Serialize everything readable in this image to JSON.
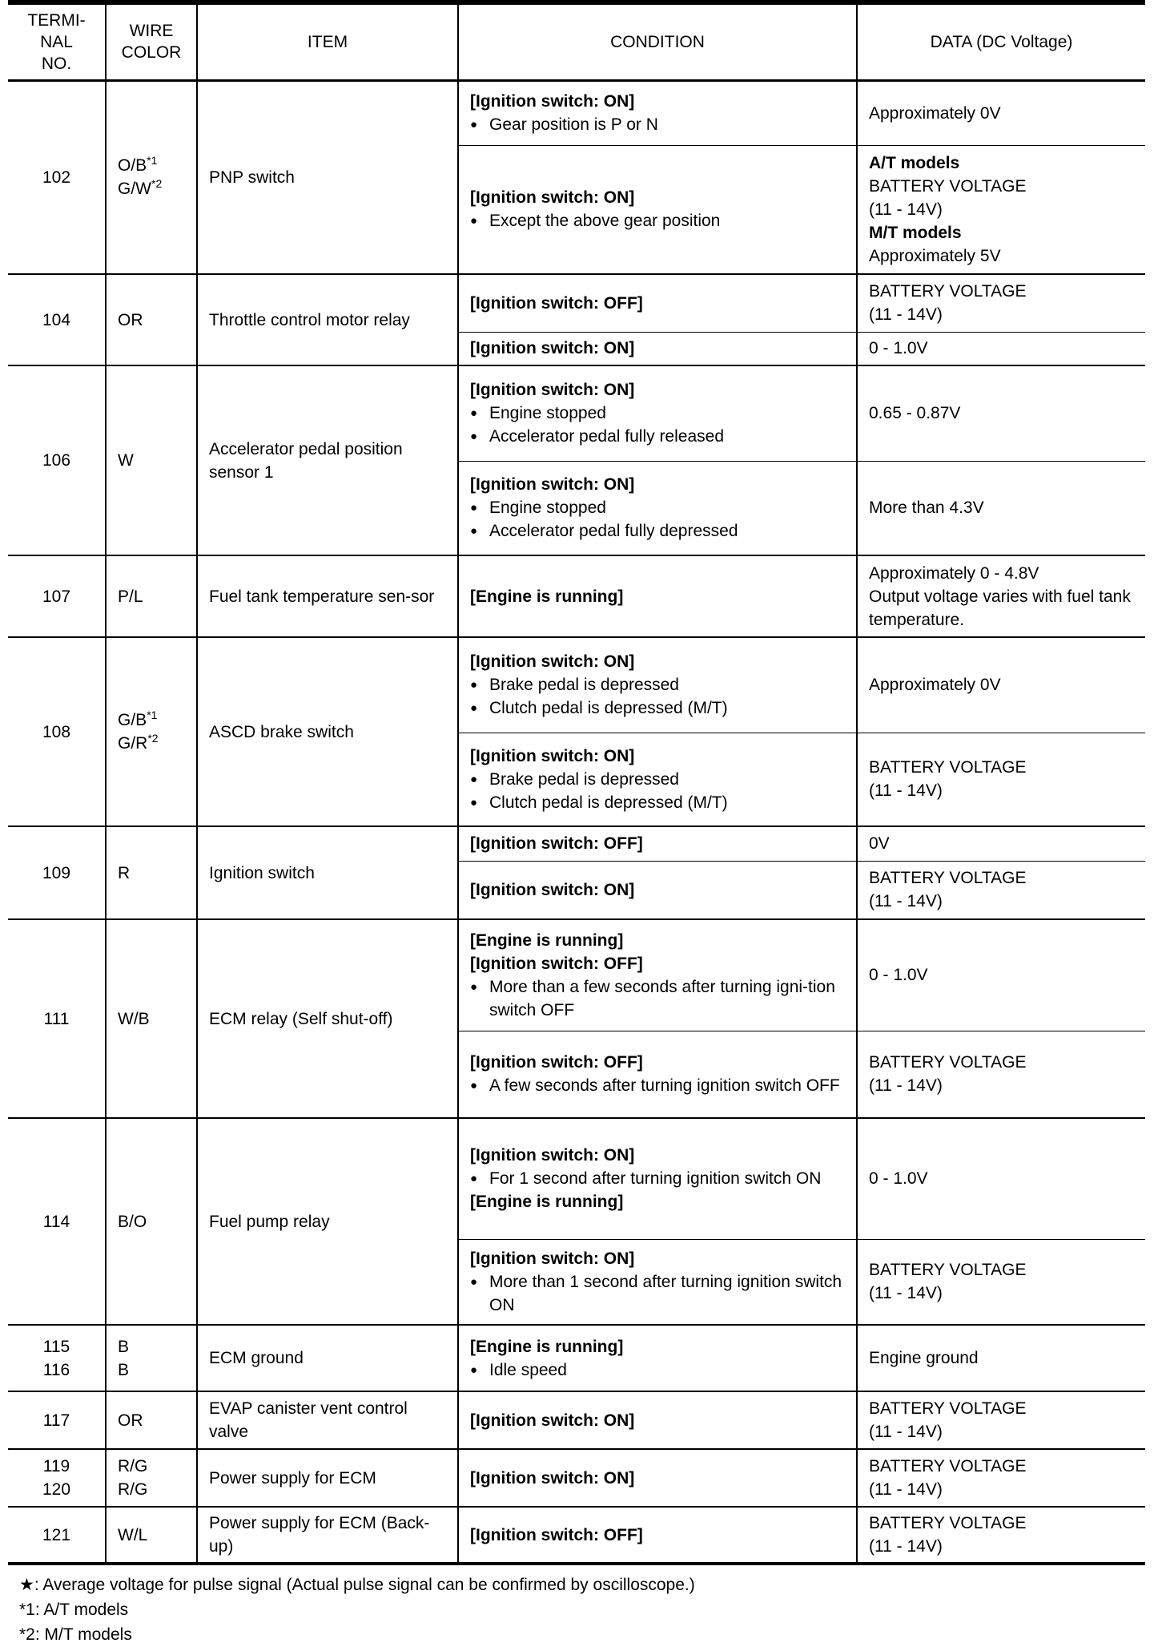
{
  "headers": {
    "terminal": "TERMI-\nNAL\nNO.",
    "wire": "WIRE\nCOLOR",
    "item": "ITEM",
    "condition": "CONDITION",
    "data": "DATA (DC Voltage)"
  },
  "rows": [
    {
      "terminal": [
        "102"
      ],
      "wire": [
        {
          "text": "O/B",
          "sup": "*1"
        },
        {
          "text": "G/W",
          "sup": "*2"
        }
      ],
      "item": "PNP switch",
      "subs": [
        {
          "h": 81,
          "cond": [
            {
              "t": "[Ignition switch: ON]",
              "b": true
            },
            {
              "t": "Gear position is P or N",
              "bul": true
            }
          ],
          "data": [
            {
              "t": "Approximately 0V"
            }
          ]
        },
        {
          "h": 161,
          "cond": [
            {
              "t": "[Ignition switch: ON]",
              "b": true
            },
            {
              "t": "Except the above gear position",
              "bul": true
            }
          ],
          "data": [
            {
              "t": "A/T models",
              "b": true
            },
            {
              "t": "BATTERY VOLTAGE"
            },
            {
              "t": "(11 - 14V)"
            },
            {
              "t": "M/T models",
              "b": true
            },
            {
              "t": "Approximately 5V"
            }
          ]
        }
      ]
    },
    {
      "terminal": [
        "104"
      ],
      "wire": [
        {
          "text": "OR"
        }
      ],
      "item": "Throttle control motor relay",
      "subs": [
        {
          "h": 72,
          "cond": [
            {
              "t": "[Ignition switch: OFF]",
              "b": true
            }
          ],
          "data": [
            {
              "t": "BATTERY VOLTAGE"
            },
            {
              "t": "(11 - 14V)"
            }
          ]
        },
        {
          "h": 42,
          "cond": [
            {
              "t": "[Ignition switch: ON]",
              "b": true
            }
          ],
          "data": [
            {
              "t": "0 - 1.0V"
            }
          ]
        }
      ]
    },
    {
      "terminal": [
        "106"
      ],
      "wire": [
        {
          "text": "W"
        }
      ],
      "item": "Accelerator pedal position sensor 1",
      "subs": [
        {
          "h": 119,
          "cond": [
            {
              "t": "[Ignition switch: ON]",
              "b": true
            },
            {
              "t": "Engine stopped",
              "bul": true
            },
            {
              "t": "Accelerator pedal fully released",
              "bul": true
            }
          ],
          "data": [
            {
              "t": "0.65 - 0.87V"
            }
          ]
        },
        {
          "h": 118,
          "cond": [
            {
              "t": "[Ignition switch: ON]",
              "b": true
            },
            {
              "t": "Engine stopped",
              "bul": true
            },
            {
              "t": "Accelerator pedal fully depressed",
              "bul": true
            }
          ],
          "data": [
            {
              "t": "More than 4.3V"
            }
          ]
        }
      ]
    },
    {
      "terminal": [
        "107"
      ],
      "wire": [
        {
          "text": "P/L"
        }
      ],
      "item": "Fuel tank temperature sen-sor",
      "subs": [
        {
          "h": 102,
          "cond": [
            {
              "t": "[Engine is running]",
              "b": true
            }
          ],
          "data": [
            {
              "t": "Approximately 0 - 4.8V"
            },
            {
              "t": " Output voltage varies with fuel tank temperature."
            }
          ]
        }
      ]
    },
    {
      "terminal": [
        "108"
      ],
      "wire": [
        {
          "text": "G/B",
          "sup": "*1"
        },
        {
          "text": "G/R",
          "sup": "*2"
        }
      ],
      "item": "ASCD brake switch",
      "subs": [
        {
          "h": 119,
          "cond": [
            {
              "t": "[Ignition switch: ON]",
              "b": true
            },
            {
              "t": "Brake pedal is depressed",
              "bul": true
            },
            {
              "t": "Clutch pedal is depressed (M/T)",
              "bul": true
            }
          ],
          "data": [
            {
              "t": " Approximately 0V"
            }
          ]
        },
        {
          "h": 117,
          "cond": [
            {
              "t": "[Ignition switch: ON]",
              "b": true
            },
            {
              "t": "Brake pedal is depressed",
              "bul": true
            },
            {
              "t": "Clutch pedal is depressed (M/T)",
              "bul": true
            }
          ],
          "data": [
            {
              "t": "BATTERY VOLTAGE"
            },
            {
              "t": "(11 - 14V)"
            }
          ]
        }
      ]
    },
    {
      "terminal": [
        "109"
      ],
      "wire": [
        {
          "text": "R"
        }
      ],
      "item": "Ignition switch",
      "subs": [
        {
          "h": 43,
          "cond": [
            {
              "t": "[Ignition switch: OFF]",
              "b": true
            }
          ],
          "data": [
            {
              "t": "0V"
            }
          ]
        },
        {
          "h": 73,
          "cond": [
            {
              "t": "[Ignition switch: ON]",
              "b": true
            }
          ],
          "data": [
            {
              "t": "BATTERY VOLTAGE"
            },
            {
              "t": "(11 - 14V)"
            }
          ]
        }
      ]
    },
    {
      "terminal": [
        "111"
      ],
      "wire": [
        {
          "text": "W/B"
        }
      ],
      "item": "ECM relay (Self shut-off)",
      "subs": [
        {
          "h": 139,
          "cond": [
            {
              "t": "[Engine is running]",
              "b": true
            },
            {
              "t": "[Ignition switch: OFF]",
              "b": true
            },
            {
              "t": "More than a few seconds after turning igni-tion switch OFF",
              "bul": true
            }
          ],
          "data": [
            {
              "t": "0 - 1.0V"
            }
          ]
        },
        {
          "h": 109,
          "cond": [
            {
              "t": "[Ignition switch: OFF]",
              "b": true
            },
            {
              "t": "A few seconds after turning ignition switch OFF",
              "bul": true
            }
          ],
          "data": [
            {
              "t": "BATTERY VOLTAGE"
            },
            {
              "t": "(11 - 14V)"
            }
          ]
        }
      ]
    },
    {
      "terminal": [
        "114"
      ],
      "wire": [
        {
          "text": "B/O"
        }
      ],
      "item": "Fuel pump relay",
      "subs": [
        {
          "h": 151,
          "cond": [
            {
              "t": "[Ignition switch: ON]",
              "b": true
            },
            {
              "t": "For 1 second after turning ignition switch ON",
              "bul": true
            },
            {
              "t": "[Engine is running]",
              "b": true
            }
          ],
          "data": [
            {
              "t": "0 - 1.0V"
            }
          ]
        },
        {
          "h": 107,
          "cond": [
            {
              "t": "[Ignition switch: ON]",
              "b": true
            },
            {
              "t": "More than 1 second after turning ignition switch ON",
              "bul": true
            }
          ],
          "data": [
            {
              "t": "BATTERY VOLTAGE"
            },
            {
              "t": "(11 - 14V)"
            }
          ]
        }
      ]
    },
    {
      "terminal": [
        "115",
        "116"
      ],
      "wire": [
        {
          "text": "B"
        },
        {
          "text": "B"
        }
      ],
      "item": "ECM ground",
      "subs": [
        {
          "h": 83,
          "cond": [
            {
              "t": "[Engine is running]",
              "b": true
            },
            {
              "t": "Idle speed",
              "bul": true
            }
          ],
          "data": [
            {
              "t": "Engine ground"
            }
          ]
        }
      ]
    },
    {
      "terminal": [
        "117"
      ],
      "wire": [
        {
          "text": "OR"
        }
      ],
      "item": "EVAP canister vent control valve",
      "subs": [
        {
          "h": 72,
          "cond": [
            {
              "t": "[Ignition switch: ON]",
              "b": true
            }
          ],
          "data": [
            {
              "t": "BATTERY VOLTAGE"
            },
            {
              "t": "(11 - 14V)"
            }
          ]
        }
      ]
    },
    {
      "terminal": [
        "119",
        "120"
      ],
      "wire": [
        {
          "text": "R/G"
        },
        {
          "text": "R/G"
        }
      ],
      "item": "Power supply for ECM",
      "subs": [
        {
          "h": 72,
          "cond": [
            {
              "t": "[Ignition switch: ON]",
              "b": true
            }
          ],
          "data": [
            {
              "t": "BATTERY VOLTAGE"
            },
            {
              "t": "(11 - 14V)"
            }
          ]
        }
      ]
    },
    {
      "terminal": [
        "121"
      ],
      "wire": [
        {
          "text": "W/L"
        }
      ],
      "item": "Power supply for ECM (Back-up)",
      "subs": [
        {
          "h": 71,
          "cond": [
            {
              "t": "[Ignition switch: OFF]",
              "b": true
            }
          ],
          "data": [
            {
              "t": "BATTERY VOLTAGE"
            },
            {
              "t": "(11 - 14V)"
            }
          ]
        }
      ]
    }
  ],
  "footer": {
    "star_icon": "★",
    "star_note": ": Average voltage for pulse signal (Actual pulse signal can be confirmed by oscilloscope.)",
    "note1": "*1: A/T models",
    "note2": "*2: M/T models"
  }
}
